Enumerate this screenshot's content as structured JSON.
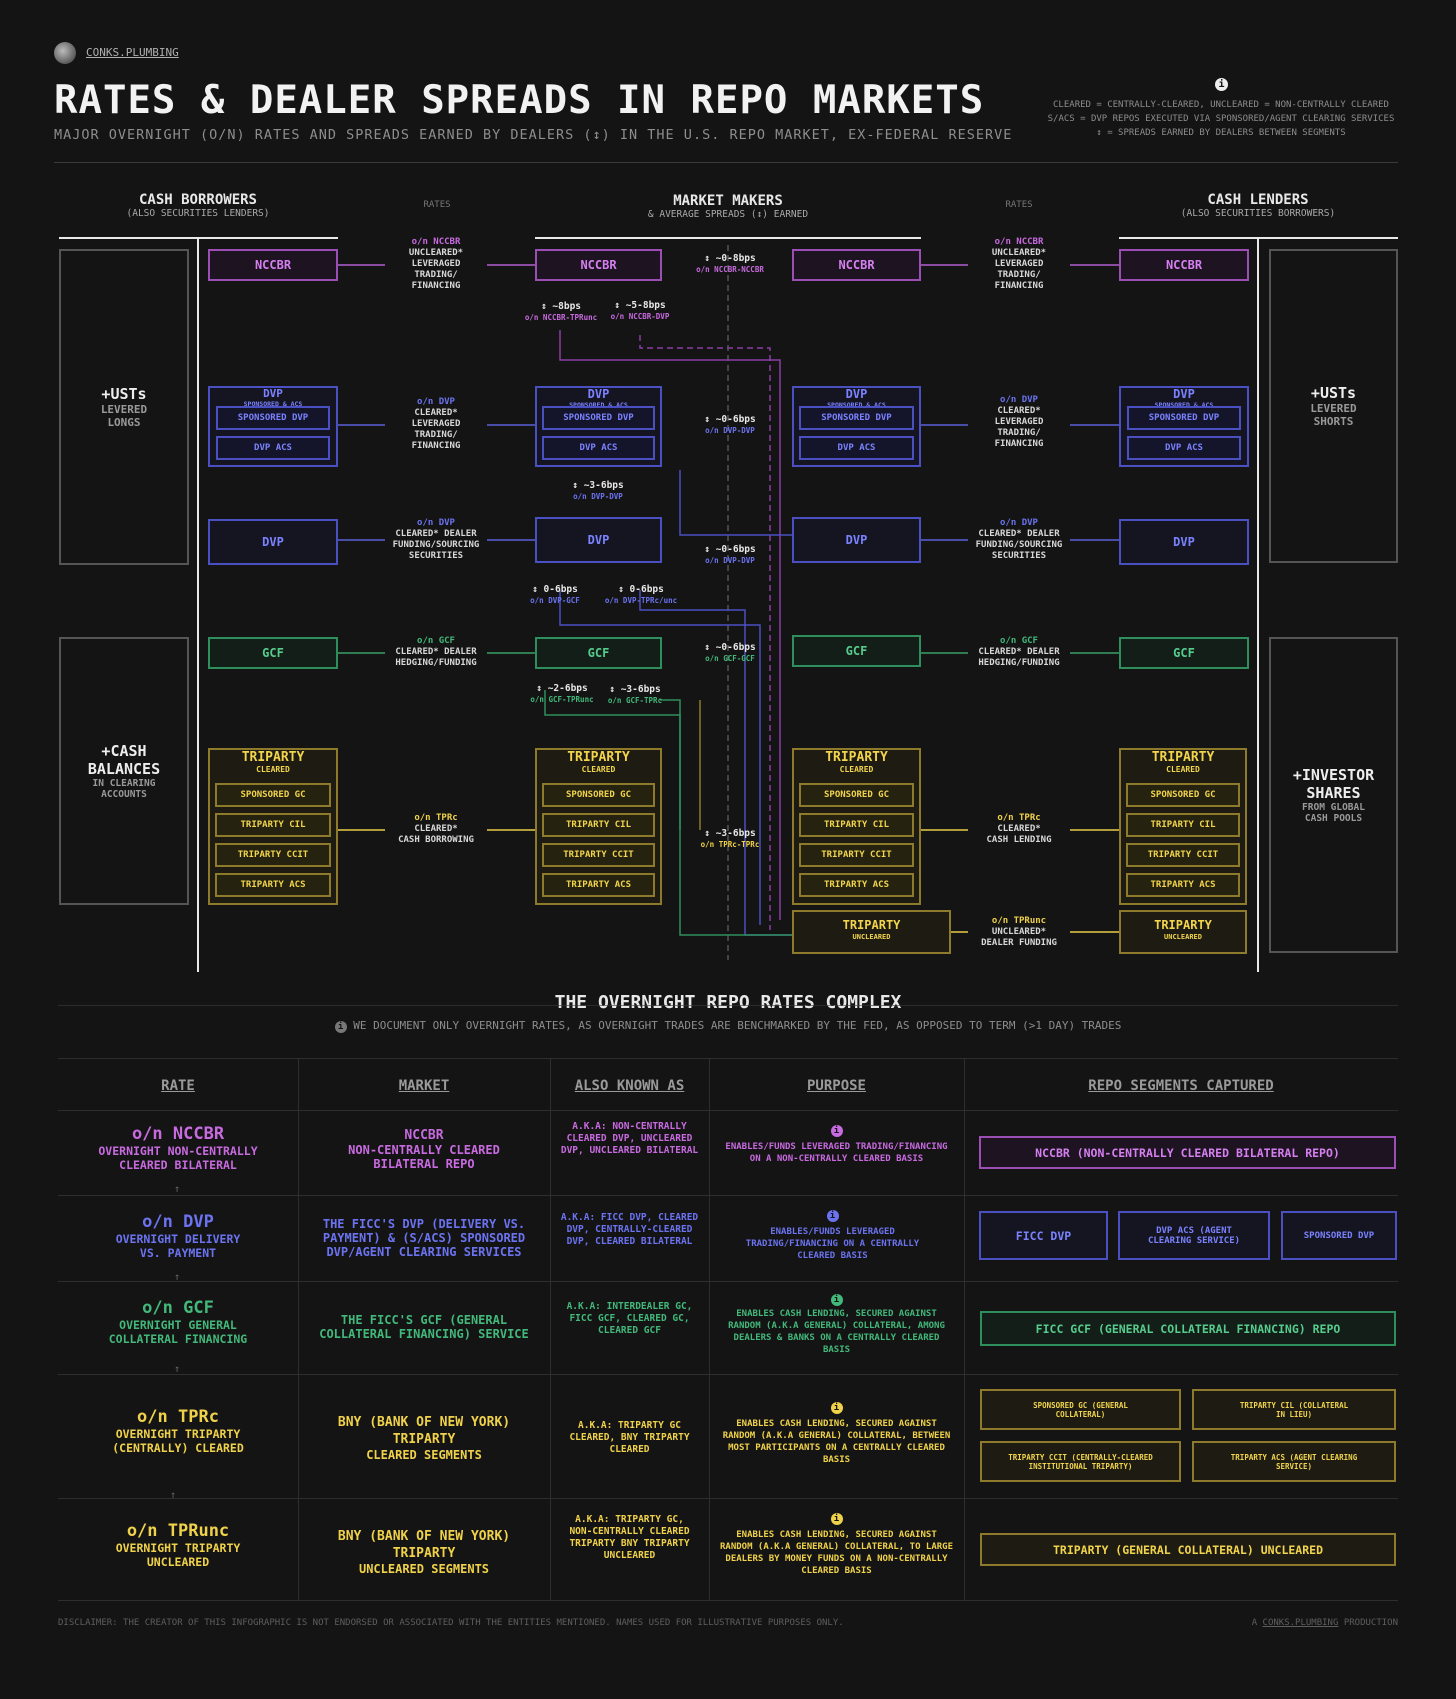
{
  "brand": "CONKS.PLUMBING",
  "title": "RATES & DEALER SPREADS IN REPO MARKETS",
  "subtitle": "MAJOR OVERNIGHT (O/N) RATES AND SPREADS EARNED BY DEALERS (↕) IN THE U.S. REPO MARKET, EX-FEDERAL RESERVE",
  "legend": {
    "line1": "CLEARED = CENTRALLY-CLEARED, UNCLEARED = NON-CENTRALLY CLEARED",
    "line2": "S/ACS = DVP REPOS EXECUTED VIA SPONSORED/AGENT CLEARING SERVICES",
    "line3": "↕ = SPREADS EARNED BY DEALERS BETWEEN SEGMENTS"
  },
  "columns": {
    "borrowers": "CASH BORROWERS",
    "borrowers_sub": "(ALSO SECURITIES LENDERS)",
    "rates": "RATES",
    "makers": "MARKET MAKERS",
    "makers_sub": "& AVERAGE SPREADS (↕) EARNED",
    "lenders": "CASH LENDERS",
    "lenders_sub": "(ALSO SECURITIES BORROWERS)"
  },
  "side_panels": {
    "ust_long_big": "+USTs",
    "ust_long_small": "LEVERED LONGS",
    "cash_big": "+CASH BALANCES",
    "cash_small": "IN CLEARING ACCOUNTS",
    "ust_short_big": "+USTs",
    "ust_short_small": "LEVERED SHORTS",
    "inv_big": "+INVESTOR SHARES",
    "inv_small": "FROM GLOBAL CASH POOLS"
  },
  "boxes": {
    "nccbr": "NCCBR",
    "dvp": "DVP",
    "dvp_sub": "SPONSORED & ACS",
    "sponsored_dvp": "SPONSORED DVP",
    "dvp_acs": "DVP ACS",
    "gcf": "GCF",
    "triparty": "TRIPARTY",
    "cleared": "CLEARED",
    "uncleared": "UNCLEARED",
    "sponsored_gc": "SPONSORED GC",
    "triparty_cil": "TRIPARTY CIL",
    "triparty_ccit": "TRIPARTY CCIT",
    "triparty_acs": "TRIPARTY ACS"
  },
  "rates_left": {
    "nccbr": [
      "o/n NCCBR",
      "UNCLEARED*",
      "LEVERAGED",
      "TRADING/",
      "FINANCING"
    ],
    "dvp1": [
      "o/n DVP",
      "CLEARED*",
      "LEVERAGED",
      "TRADING/",
      "FINANCING"
    ],
    "dvp2": [
      "o/n DVP",
      "CLEARED* DEALER",
      "FUNDING/SOURCING",
      "SECURITIES"
    ],
    "gcf": [
      "o/n GCF",
      "CLEARED* DEALER",
      "HEDGING/FUNDING"
    ],
    "tpr": [
      "o/n TPRc",
      "CLEARED*",
      "CASH BORROWING"
    ]
  },
  "rates_right": {
    "nccbr": [
      "o/n NCCBR",
      "UNCLEARED*",
      "LEVERAGED",
      "TRADING/",
      "FINANCING"
    ],
    "dvp1": [
      "o/n DVP",
      "CLEARED*",
      "LEVERAGED",
      "TRADING/",
      "FINANCING"
    ],
    "dvp2": [
      "o/n DVP",
      "CLEARED* DEALER",
      "FUNDING/SOURCING",
      "SECURITIES"
    ],
    "gcf": [
      "o/n GCF",
      "CLEARED* DEALER",
      "HEDGING/FUNDING"
    ],
    "tpr": [
      "o/n TPRc",
      "CLEARED*",
      "CASH LENDING"
    ],
    "tpr_unc": [
      "o/n TPRunc",
      "UNCLEARED*",
      "DEALER FUNDING"
    ]
  },
  "spreads": {
    "nccbr_nccbr": [
      "↕ ~0-8bps",
      "o/n NCCBR-NCCBR"
    ],
    "nccbr_tpr": [
      "↕ ~8bps",
      "o/n NCCBR-TPRunc"
    ],
    "nccbr_dvp": [
      "↕ ~5-8bps",
      "o/n NCCBR-DVP"
    ],
    "dvp_dvp1": [
      "↕ ~0-6bps",
      "o/n DVP-DVP"
    ],
    "dvp_dvp_mid": [
      "↕ ~3-6bps",
      "o/n DVP-DVP"
    ],
    "dvp_dvp2": [
      "↕ ~0-6bps",
      "o/n DVP-DVP"
    ],
    "dvp_gcf": [
      "↕ 0-6bps",
      "o/n DVP-GCF"
    ],
    "dvp_tpr": [
      "↕ 0-6bps",
      "o/n DVP-TPRc/unc"
    ],
    "gcf_gcf": [
      "↕ ~0-6bps",
      "o/n GCF-GCF"
    ],
    "gcf_tpru": [
      "↕ ~2-6bps",
      "o/n GCF-TPRunc"
    ],
    "gcf_tprc": [
      "↕ ~3-6bps",
      "o/n GCF-TPRc"
    ],
    "tpr_tpr": [
      "↕ ~3-6bps",
      "o/n TPRc-TPRc"
    ]
  },
  "complex": {
    "heading": "THE OVERNIGHT REPO RATES COMPLEX",
    "note": "WE DOCUMENT ONLY OVERNIGHT RATES, AS OVERNIGHT TRADES ARE BENCHMARKED BY THE FED, AS OPPOSED TO TERM (>1 DAY) TRADES"
  },
  "table": {
    "headers": [
      "RATE",
      "MARKET",
      "ALSO KNOWN AS",
      "PURPOSE",
      "REPO SEGMENTS CAPTURED"
    ],
    "rows": [
      {
        "rate": "o/n NCCBR",
        "rate_sub": "OVERNIGHT NON-CENTRALLY CLEARED BILATERAL",
        "market": "NCCBR",
        "market_sub": "NON-CENTRALLY CLEARED BILATERAL REPO",
        "aka": "A.K.A: NON-CENTRALLY CLEARED DVP, UNCLEARED DVP, UNCLEARED BILATERAL",
        "purpose": "ENABLES/FUNDS LEVERAGED TRADING/FINANCING ON A NON-CENTRALLY CLEARED BASIS",
        "segments": [
          "NCCBR (NON-CENTRALLY CLEARED BILATERAL REPO)"
        ]
      },
      {
        "rate": "o/n DVP",
        "rate_sub": "OVERNIGHT DELIVERY VS. PAYMENT",
        "market": "THE FICC'S DVP (DELIVERY VS. PAYMENT) & (S/ACS) SPONSORED DVP/AGENT CLEARING SERVICES",
        "aka": "A.K.A: FICC DVP, CLEARED DVP, CENTRALLY-CLEARED DVP, CLEARED BILATERAL",
        "purpose": "ENABLES/FUNDS LEVERAGED TRADING/FINANCING ON A CENTRALLY CLEARED BASIS",
        "segments": [
          "FICC DVP",
          "DVP ACS (AGENT CLEARING SERVICE)",
          "SPONSORED DVP"
        ]
      },
      {
        "rate": "o/n GCF",
        "rate_sub": "OVERNIGHT GENERAL COLLATERAL FINANCING",
        "market": "THE FICC'S GCF (GENERAL COLLATERAL FINANCING) SERVICE",
        "aka": "A.K.A: INTERDEALER GC, FICC GCF, CLEARED GC, CLEARED GCF",
        "purpose": "ENABLES CASH LENDING, SECURED AGAINST RANDOM (A.K.A GENERAL) COLLATERAL, AMONG DEALERS & BANKS ON A CENTRALLY CLEARED BASIS",
        "segments": [
          "FICC GCF (GENERAL COLLATERAL FINANCING) REPO"
        ]
      },
      {
        "rate": "o/n TPRc",
        "rate_sub": "OVERNIGHT TRIPARTY (CENTRALLY) CLEARED",
        "market": "BNY (BANK OF NEW YORK) TRIPARTY",
        "market_sub": "CLEARED SEGMENTS",
        "aka": "A.K.A: TRIPARTY GC CLEARED, BNY TRIPARTY CLEARED",
        "purpose": "ENABLES CASH LENDING, SECURED AGAINST RANDOM (A.K.A GENERAL) COLLATERAL, BETWEEN MOST PARTICIPANTS ON A CENTRALLY CLEARED BASIS",
        "segments": [
          "SPONSORED GC (GENERAL COLLATERAL)",
          "TRIPARTY CIL (COLLATERAL IN LIEU)",
          "TRIPARTY CCIT (CENTRALLY-CLEARED INSTITUTIONAL TRIPARTY)",
          "TRIPARTY ACS (AGENT CLEARING SERVICE)"
        ]
      },
      {
        "rate": "o/n TPRunc",
        "rate_sub": "OVERNIGHT TRIPARTY UNCLEARED",
        "market": "BNY (BANK OF NEW YORK) TRIPARTY",
        "market_sub": "UNCLEARED SEGMENTS",
        "aka": "A.K.A: TRIPARTY GC, NON-CENTRALLY CLEARED TRIPARTY BNY TRIPARTY UNCLEARED",
        "purpose": "ENABLES CASH LENDING, SECURED AGAINST RANDOM (A.K.A GENERAL) COLLATERAL, TO LARGE DEALERS BY MONEY FUNDS ON A NON-CENTRALLY CLEARED BASIS",
        "segments": [
          "TRIPARTY (GENERAL COLLATERAL) UNCLEARED"
        ]
      }
    ]
  },
  "footer": {
    "disclaimer": "DISCLAIMER: THE CREATOR OF THIS INFOGRAPHIC IS NOT ENDORSED OR ASSOCIATED WITH THE ENTITIES MENTIONED. NAMES USED FOR ILLUSTRATIVE PURPOSES ONLY.",
    "credit_prefix": "A",
    "credit_link": "CONKS.PLUMBING",
    "credit_suffix": "PRODUCTION"
  },
  "colors": {
    "nccbr": "#c86ae0",
    "dvp": "#6b73f0",
    "gcf": "#42b87a",
    "triparty": "#f0d24a",
    "background": "#141414"
  }
}
